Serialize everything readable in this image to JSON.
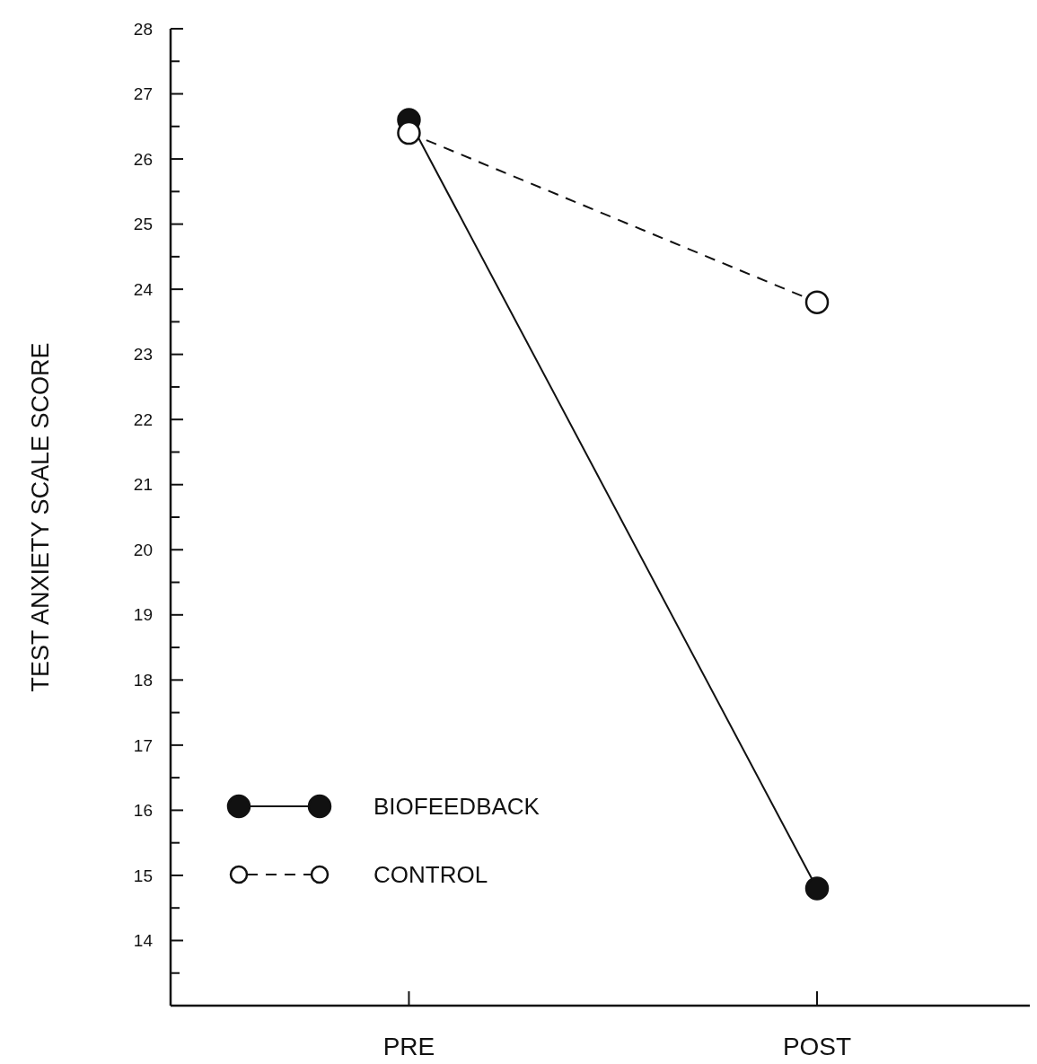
{
  "chart_data": {
    "type": "line",
    "ylabel": "TEST ANXIETY SCALE SCORE",
    "categories": [
      "PRE",
      "POST"
    ],
    "ylim": [
      13,
      28
    ],
    "yticks": [
      {
        "value": 13.5,
        "label": null
      },
      14,
      {
        "value": 14.5,
        "label": null
      },
      15,
      {
        "value": 15.5,
        "label": null
      },
      16,
      {
        "value": 16.5,
        "label": null
      },
      17,
      {
        "value": 17.5,
        "label": null
      },
      18,
      {
        "value": 18.5,
        "label": null
      },
      19,
      {
        "value": 19.5,
        "label": null
      },
      20,
      {
        "value": 20.5,
        "label": null
      },
      21,
      {
        "value": 21.5,
        "label": null
      },
      22,
      {
        "value": 22.5,
        "label": null
      },
      23,
      {
        "value": 23.5,
        "label": null
      },
      24,
      {
        "value": 24.5,
        "label": null
      },
      25,
      {
        "value": 25.5,
        "label": null
      },
      26,
      {
        "value": 26.5,
        "label": null
      },
      27,
      {
        "value": 27.5,
        "label": null
      },
      28
    ],
    "series": [
      {
        "name": "BIOFEEDBACK",
        "color": "#111111",
        "values": [
          26.6,
          14.8
        ],
        "line_style": "solid",
        "marker": "circle"
      },
      {
        "name": "CONTROL",
        "color": "#111111",
        "values": [
          26.4,
          23.8
        ],
        "line_style": "dashed",
        "marker": "circle"
      }
    ],
    "grid": false,
    "legend": "bottom left"
  }
}
